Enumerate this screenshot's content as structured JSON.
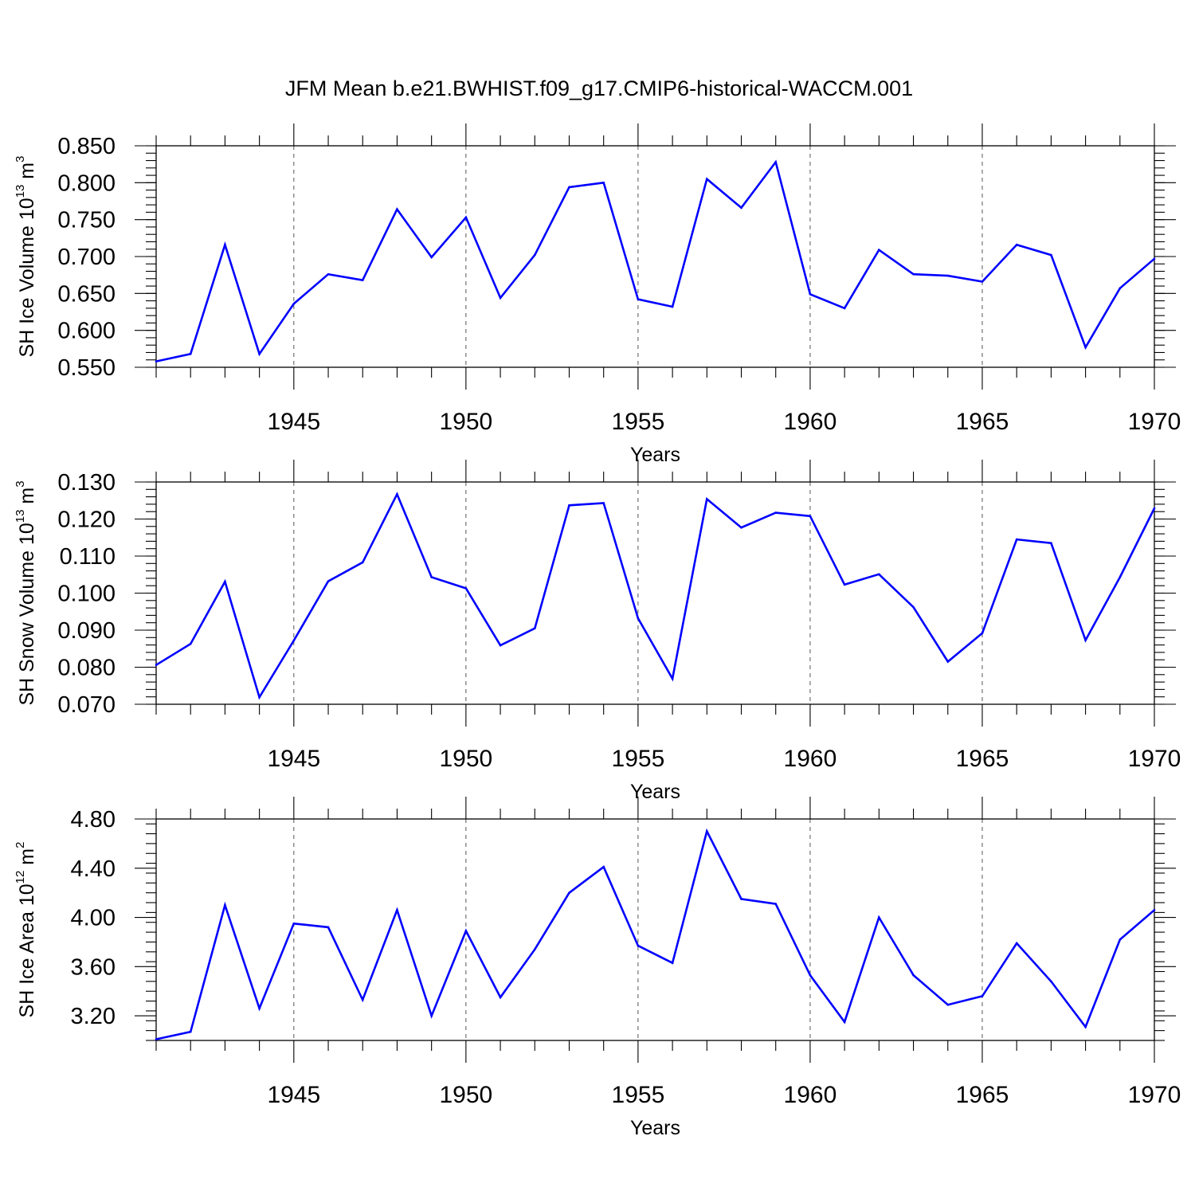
{
  "title": "JFM Mean b.e21.BWHIST.f09_g17.CMIP6-historical-WACCM.001",
  "line_color": "#0000ff",
  "chart_data": [
    {
      "type": "line",
      "xlabel": "Years",
      "ylabel_main": "SH Ice Volume 10",
      "ylabel_exp": "13",
      "ylabel_unit": " m",
      "ylabel_unit_exp": "3",
      "xlim": [
        1941,
        1970
      ],
      "ylim": [
        0.55,
        0.85
      ],
      "ytick_values": [
        0.55,
        0.6,
        0.65,
        0.7,
        0.75,
        0.8,
        0.85
      ],
      "ytick_labels": [
        "0.550",
        "0.600",
        "0.650",
        "0.700",
        "0.750",
        "0.800",
        "0.850"
      ],
      "yminor_step": 0.01,
      "xtick_values": [
        1945,
        1950,
        1955,
        1960,
        1965,
        1970
      ],
      "xtick_labels": [
        "1945",
        "1950",
        "1955",
        "1960",
        "1965",
        "1970"
      ],
      "x": [
        1941,
        1942,
        1943,
        1944,
        1945,
        1946,
        1947,
        1948,
        1949,
        1950,
        1951,
        1952,
        1953,
        1954,
        1955,
        1956,
        1957,
        1958,
        1959,
        1960,
        1961,
        1962,
        1963,
        1964,
        1965,
        1966,
        1967,
        1968,
        1969,
        1970
      ],
      "values": [
        0.558,
        0.568,
        0.716,
        0.568,
        0.636,
        0.676,
        0.668,
        0.764,
        0.699,
        0.753,
        0.644,
        0.702,
        0.794,
        0.8,
        0.642,
        0.632,
        0.805,
        0.766,
        0.828,
        0.649,
        0.63,
        0.709,
        0.676,
        0.674,
        0.666,
        0.716,
        0.702,
        0.577,
        0.657,
        0.697
      ]
    },
    {
      "type": "line",
      "xlabel": "Years",
      "ylabel_main": "SH Snow Volume 10",
      "ylabel_exp": "13",
      "ylabel_unit": " m",
      "ylabel_unit_exp": "3",
      "xlim": [
        1941,
        1970
      ],
      "ylim": [
        0.07,
        0.13
      ],
      "ytick_values": [
        0.07,
        0.08,
        0.09,
        0.1,
        0.11,
        0.12,
        0.13
      ],
      "ytick_labels": [
        "0.070",
        "0.080",
        "0.090",
        "0.100",
        "0.110",
        "0.120",
        "0.130"
      ],
      "yminor_step": 0.002,
      "xtick_values": [
        1945,
        1950,
        1955,
        1960,
        1965,
        1970
      ],
      "xtick_labels": [
        "1945",
        "1950",
        "1955",
        "1960",
        "1965",
        "1970"
      ],
      "x": [
        1941,
        1942,
        1943,
        1944,
        1945,
        1946,
        1947,
        1948,
        1949,
        1950,
        1951,
        1952,
        1953,
        1954,
        1955,
        1956,
        1957,
        1958,
        1959,
        1960,
        1961,
        1962,
        1963,
        1964,
        1965,
        1966,
        1967,
        1968,
        1969,
        1970
      ],
      "values": [
        0.0806,
        0.0863,
        0.1031,
        0.0719,
        0.0872,
        0.1032,
        0.1083,
        0.1267,
        0.1043,
        0.1013,
        0.0859,
        0.0905,
        0.1237,
        0.1243,
        0.0932,
        0.0769,
        0.1254,
        0.1177,
        0.1217,
        0.1208,
        0.1023,
        0.1051,
        0.0962,
        0.0815,
        0.0892,
        0.1145,
        0.1135,
        0.0873,
        0.1043,
        0.1229
      ]
    },
    {
      "type": "line",
      "xlabel": "Years",
      "ylabel_main": "SH Ice Area 10",
      "ylabel_exp": "12",
      "ylabel_unit": " m",
      "ylabel_unit_exp": "2",
      "xlim": [
        1941,
        1970
      ],
      "ylim": [
        3.0,
        4.8
      ],
      "ytick_values": [
        3.2,
        3.6,
        4.0,
        4.4,
        4.8
      ],
      "ytick_labels": [
        "3.20",
        "3.60",
        "4.00",
        "4.40",
        "4.80"
      ],
      "yminor_step": 0.08,
      "xtick_values": [
        1945,
        1950,
        1955,
        1960,
        1965,
        1970
      ],
      "xtick_labels": [
        "1945",
        "1950",
        "1955",
        "1960",
        "1965",
        "1970"
      ],
      "x": [
        1941,
        1942,
        1943,
        1944,
        1945,
        1946,
        1947,
        1948,
        1949,
        1950,
        1951,
        1952,
        1953,
        1954,
        1955,
        1956,
        1957,
        1958,
        1959,
        1960,
        1961,
        1962,
        1963,
        1964,
        1965,
        1966,
        1967,
        1968,
        1969,
        1970
      ],
      "values": [
        3.01,
        3.07,
        4.1,
        3.26,
        3.95,
        3.92,
        3.33,
        4.06,
        3.2,
        3.89,
        3.35,
        3.74,
        4.2,
        4.41,
        3.77,
        3.63,
        4.7,
        4.15,
        4.11,
        3.53,
        3.15,
        4.0,
        3.53,
        3.29,
        3.36,
        3.79,
        3.48,
        3.11,
        3.82,
        4.06
      ]
    }
  ]
}
